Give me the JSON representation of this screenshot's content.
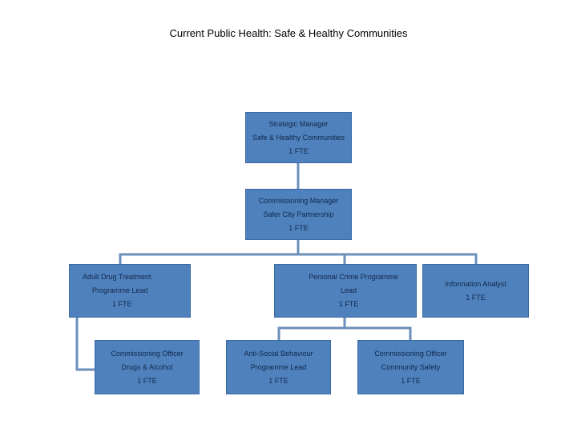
{
  "title": "Current Public Health: Safe & Healthy Communities",
  "nodes": {
    "strategic_manager": {
      "lines": [
        "Strategic Manager",
        "Safe & Healthy Communities",
        "1 FTE"
      ]
    },
    "commissioning_manager": {
      "lines": [
        "Commissioning Manager",
        "Safer City Partnership",
        "1 FTE"
      ]
    },
    "adult_drug": {
      "lines": [
        "Adult Drug Treatment",
        "Programme Lead",
        "1 FTE"
      ]
    },
    "personal_crime": {
      "lines": [
        "Personal Crime Programme",
        "Lead",
        "1 FTE"
      ]
    },
    "information_analyst": {
      "lines": [
        "Information Analyst",
        "1 FTE"
      ]
    },
    "commissioning_officer_drugs": {
      "lines": [
        "Commissioning Officer",
        "Drugs & Alcohol",
        "1 FTE"
      ]
    },
    "anti_social": {
      "lines": [
        "Anti-Social Behaviour",
        "Programme Lead",
        "1 FTE"
      ]
    },
    "commissioning_officer_community": {
      "lines": [
        "Commissioning Officer",
        "Community Safety",
        "1 FTE"
      ]
    }
  },
  "colors": {
    "box_fill": "#4f81bd",
    "connector": "#6b8fba",
    "text": "#10284a"
  }
}
